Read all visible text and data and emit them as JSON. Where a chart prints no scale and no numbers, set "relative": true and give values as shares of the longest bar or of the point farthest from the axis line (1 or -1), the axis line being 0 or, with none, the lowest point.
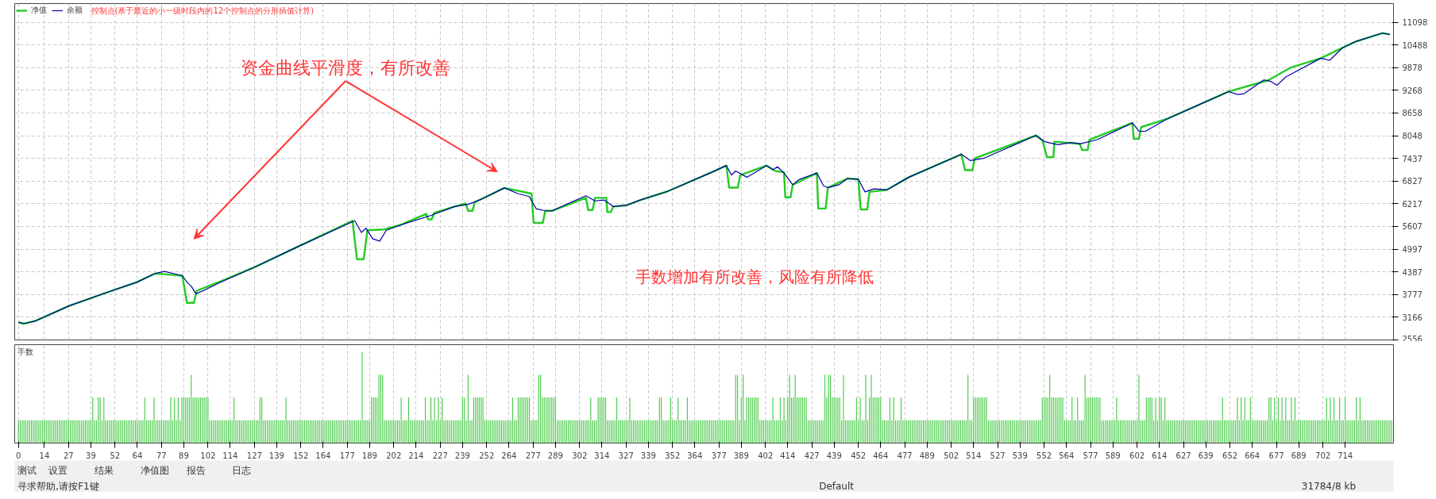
{
  "chart_data": [
    {
      "type": "line",
      "legend": "top left",
      "grid": true,
      "tick_labels": "y",
      "line_style": "solid",
      "xlim": [
        -2,
        740
      ],
      "ylim": [
        2556,
        11600
      ],
      "xticks": [
        0,
        14,
        27,
        39,
        52,
        64,
        77,
        89,
        102,
        114,
        127,
        139,
        152,
        164,
        177,
        189,
        202,
        214,
        227,
        239,
        252,
        264,
        277,
        289,
        302,
        314,
        327,
        339,
        352,
        364,
        377,
        389,
        402,
        414,
        427,
        439,
        452,
        464,
        477,
        489,
        502,
        514,
        527,
        539,
        552,
        564,
        577,
        589,
        602,
        614,
        627,
        639,
        652,
        664,
        677,
        689,
        702,
        714
      ],
      "yticks": [
        2556,
        3166,
        3777,
        4387,
        4997,
        5607,
        6217,
        6827,
        7437,
        8048,
        8658,
        9268,
        9878,
        10488,
        11098
      ],
      "annotations": [
        "控制点(基于最近的小一级时段内的12个控制点的分形插值计算)",
        "手数增加有所改善，风险有所降低",
        "资金曲线平滑度，有所改善"
      ],
      "series": [
        {
          "name": "净值",
          "color": "#22cc22",
          "x": [
            0,
            2.8,
            9,
            27.2,
            46.8,
            63.8,
            73.6,
            79.7,
            88.2,
            90.7,
            94.4,
            96,
            107.8,
            127.3,
            149.3,
            179.8,
            182.2,
            185.8,
            187.8,
            196.8,
            205.4,
            219.5,
            220.5,
            222.4,
            223.7,
            234.7,
            240.7,
            242,
            244.4,
            245.6,
            261.5,
            276.1,
            277.3,
            282.2,
            283.5,
            287.1,
            305.4,
            306.6,
            309,
            310.3,
            316.4,
            316.9,
            318.8,
            320.1,
            327.4,
            334.7,
            349.3,
            373.1,
            381,
            382.5,
            387.2,
            388.4,
            402.6,
            407.3,
            412,
            412.7,
            415.5,
            416.7,
            429.7,
            430.4,
            434.4,
            435.6,
            446.2,
            452,
            453.3,
            456.8,
            458,
            467.4,
            479.2,
            507.5,
            509.4,
            513.4,
            514.6,
            547.6,
            551.1,
            553.5,
            557,
            557.5,
            571.2,
            572.4,
            575.4,
            576.4,
            599.5,
            600.2,
            603,
            604.2,
            618.3,
            651.3,
            672.5,
            684.4,
            700.9,
            712.6,
            719.7,
            733.9,
            738
          ],
          "values": [
            3030,
            2994,
            3064,
            3471,
            3819,
            4110,
            4342,
            4319,
            4284,
            3552,
            3552,
            3877,
            4110,
            4517,
            5039,
            5760,
            4726,
            4726,
            5504,
            5527,
            5644,
            5946,
            5795,
            5795,
            5969,
            6143,
            6225,
            6027,
            6027,
            6260,
            6643,
            6492,
            5702,
            5702,
            6027,
            6027,
            6376,
            6050,
            6050,
            6376,
            6376,
            5992,
            5992,
            6143,
            6178,
            6318,
            6550,
            7065,
            7245,
            6650,
            6650,
            6987,
            7245,
            7099,
            7065,
            6391,
            6391,
            6728,
            7043,
            6088,
            6088,
            6650,
            6897,
            6874,
            6066,
            6066,
            6537,
            6594,
            6931,
            7548,
            7122,
            7122,
            7436,
            8054,
            7919,
            7470,
            7470,
            7885,
            7829,
            7661,
            7661,
            7941,
            8391,
            7964,
            7964,
            8278,
            8503,
            9233,
            9536,
            9873,
            10131,
            10412,
            10580,
            10805,
            10771
          ]
        },
        {
          "name": "余额",
          "color": "#0000aa",
          "x": [
            0,
            2.8,
            9,
            27.2,
            46.8,
            63.8,
            73.6,
            78.5,
            83.4,
            88.2,
            90.7,
            93.1,
            95.6,
            100.4,
            107.8,
            127.3,
            149.3,
            181,
            184.6,
            187,
            190.7,
            194.4,
            198,
            205.4,
            222.4,
            234.7,
            242,
            249.3,
            261.5,
            268.8,
            274.9,
            278.6,
            283.5,
            287.1,
            305.4,
            310.3,
            315.2,
            320.1,
            327.4,
            334.7,
            349.3,
            373.1,
            381,
            383.7,
            386,
            392,
            402.6,
            406,
            408.5,
            412,
            416.7,
            420.3,
            429.7,
            433.2,
            435.6,
            441.5,
            446.2,
            452,
            455.6,
            460.3,
            467.4,
            479.2,
            507.5,
            512.2,
            519.3,
            547.6,
            552.3,
            559.4,
            566.5,
            571.2,
            580.6,
            599.5,
            603,
            606.5,
            618.3,
            651.3,
            656.1,
            659.6,
            670.2,
            673.7,
            677.3,
            682,
            700.9,
            705.6,
            712.6,
            719.7,
            733.9,
            738
          ],
          "values": [
            3030,
            2994,
            3064,
            3471,
            3819,
            4110,
            4342,
            4400,
            4342,
            4284,
            4110,
            3994,
            3796,
            3901,
            4087,
            4517,
            5039,
            5760,
            5446,
            5562,
            5272,
            5214,
            5504,
            5644,
            5911,
            6143,
            6201,
            6341,
            6643,
            6492,
            6411,
            6085,
            6027,
            6027,
            6434,
            6294,
            6318,
            6143,
            6178,
            6318,
            6550,
            7065,
            7245,
            6987,
            7099,
            6931,
            7245,
            7133,
            7211,
            7043,
            6728,
            6874,
            7043,
            6706,
            6650,
            6728,
            6897,
            6874,
            6537,
            6616,
            6594,
            6931,
            7548,
            7380,
            7436,
            8054,
            7885,
            7806,
            7863,
            7829,
            7941,
            8391,
            8166,
            8166,
            8503,
            9233,
            9154,
            9177,
            9547,
            9514,
            9401,
            9626,
            10131,
            10075,
            10412,
            10580,
            10805,
            10771
          ]
        }
      ]
    },
    {
      "type": "bar",
      "title": "手数",
      "relative": true,
      "grid": true,
      "tick_labels": "x",
      "color": "#4ccc4c",
      "xlim": [
        -2,
        740
      ],
      "xticks": [
        0,
        14,
        27,
        39,
        52,
        64,
        77,
        89,
        102,
        114,
        127,
        139,
        152,
        164,
        177,
        189,
        202,
        214,
        227,
        239,
        252,
        264,
        277,
        289,
        302,
        314,
        327,
        339,
        352,
        364,
        377,
        389,
        402,
        414,
        427,
        439,
        452,
        464,
        477,
        489,
        502,
        514,
        527,
        539,
        552,
        564,
        577,
        589,
        602,
        614,
        627,
        639,
        652,
        664,
        677,
        689,
        702,
        714
      ],
      "x": [
        0,
        1,
        2,
        3,
        4,
        5,
        6,
        7,
        8,
        9,
        10,
        11,
        12,
        13,
        14,
        15,
        16,
        17,
        18,
        19,
        20,
        21,
        22,
        23,
        24,
        25,
        26,
        27,
        28,
        29,
        30,
        31,
        32,
        33,
        34,
        35,
        36,
        37,
        38,
        39,
        40,
        41,
        42,
        43,
        44,
        45,
        46,
        47,
        48,
        49,
        50,
        51,
        52,
        53,
        54,
        55,
        56,
        57,
        58,
        59,
        60,
        61,
        62,
        63,
        64,
        65,
        66,
        67,
        68,
        69,
        70,
        71,
        72,
        73,
        74,
        75,
        76,
        77,
        78,
        79,
        80,
        81,
        82,
        83,
        84,
        85,
        86,
        87,
        88,
        89,
        90,
        91,
        92,
        93,
        94,
        95,
        96,
        97,
        98,
        99,
        100,
        101,
        102,
        103,
        104,
        105,
        106,
        107,
        108,
        109,
        110,
        111,
        112,
        113,
        114,
        115,
        116,
        117,
        118,
        119,
        120,
        121,
        122,
        123,
        124,
        125,
        126,
        127,
        128,
        129,
        130,
        131,
        132,
        133,
        134,
        135,
        136,
        137,
        138,
        139,
        140,
        141,
        142,
        143,
        144,
        145,
        146,
        147,
        148,
        149,
        150,
        151,
        152,
        153,
        154,
        155,
        156,
        157,
        158,
        159,
        160,
        161,
        162,
        163,
        164,
        165,
        166,
        167,
        168,
        169,
        170,
        171,
        172,
        173,
        174,
        175,
        176,
        177,
        178,
        179,
        180,
        181,
        182,
        183,
        184,
        185,
        186,
        187,
        188,
        189,
        190,
        191,
        192,
        193,
        194,
        195,
        196,
        197,
        198,
        199,
        200,
        201,
        202,
        203,
        204,
        205,
        206,
        207,
        208,
        209,
        210,
        211,
        212,
        213,
        214,
        215,
        216,
        217,
        218,
        219,
        220,
        221,
        222,
        223,
        224,
        225,
        226,
        227,
        228,
        229,
        230,
        231,
        232,
        233,
        234,
        235,
        236,
        237,
        238,
        239,
        240,
        241,
        242,
        243,
        244,
        245,
        246,
        247,
        248,
        249,
        250,
        251,
        252,
        253,
        254,
        255,
        256,
        257,
        258,
        259,
        260,
        261,
        262,
        263,
        264,
        265,
        266,
        267,
        268,
        269,
        270,
        271,
        272,
        273,
        274,
        275,
        276,
        277,
        278,
        279,
        280,
        281,
        282,
        283,
        284,
        285,
        286,
        287,
        288,
        289,
        290,
        291,
        292,
        293,
        294,
        295,
        296,
        297,
        298,
        299,
        300,
        301,
        302,
        303,
        304,
        305,
        306,
        307,
        308,
        309,
        310,
        311,
        312,
        313,
        314,
        315,
        316,
        317,
        318,
        319,
        320,
        321,
        322,
        323,
        324,
        325,
        326,
        327,
        328,
        329,
        330,
        331,
        332,
        333,
        334,
        335,
        336,
        337,
        338,
        339,
        340,
        341,
        342,
        343,
        344,
        345,
        346,
        347,
        348,
        349,
        350,
        351,
        352,
        353,
        354,
        355,
        356,
        357,
        358,
        359,
        360,
        361,
        362,
        363,
        364,
        365,
        366,
        367,
        368,
        369,
        370,
        371,
        372,
        373,
        374,
        375,
        376,
        377,
        378,
        379,
        380,
        381,
        382,
        383,
        384,
        385,
        386,
        387,
        388,
        389,
        390,
        391,
        392,
        393,
        394,
        395,
        396,
        397,
        398,
        399,
        400,
        401,
        402,
        403,
        404,
        405,
        406,
        407,
        408,
        409,
        410,
        411,
        412,
        413,
        414,
        415,
        416,
        417,
        418,
        419,
        420,
        421,
        422,
        423,
        424,
        425,
        426,
        427,
        428,
        429,
        430,
        431,
        432,
        433,
        434,
        435,
        436,
        437,
        438,
        439,
        440,
        441,
        442,
        443,
        444,
        445,
        446,
        447,
        448,
        449,
        450,
        451,
        452,
        453,
        454,
        455,
        456,
        457,
        458,
        459,
        460,
        461,
        462,
        463,
        464,
        465,
        466,
        467,
        468,
        469,
        470,
        471,
        472,
        473,
        474,
        475,
        476,
        477,
        478,
        479,
        480,
        481,
        482,
        483,
        484,
        485,
        486,
        487,
        488,
        489,
        490,
        491,
        492,
        493,
        494,
        495,
        496,
        497,
        498,
        499,
        500,
        501,
        502,
        503,
        504,
        505,
        506,
        507,
        508,
        509,
        510,
        511,
        512,
        513,
        514,
        515,
        516,
        517,
        518,
        519,
        520,
        521,
        522,
        523,
        524,
        525,
        526,
        527,
        528,
        529,
        530,
        531,
        532,
        533,
        534,
        535,
        536,
        537,
        538,
        539,
        540,
        541,
        542,
        543,
        544,
        545,
        546,
        547,
        548,
        549,
        550,
        551,
        552,
        553,
        554,
        555,
        556,
        557,
        558,
        559,
        560,
        561,
        562,
        563,
        564,
        565,
        566,
        567,
        568,
        569,
        570,
        571,
        572,
        573,
        574,
        575,
        576,
        577,
        578,
        579,
        580,
        581,
        582,
        583,
        584,
        585,
        586,
        587,
        588,
        589,
        590,
        591,
        592,
        593,
        594,
        595,
        596,
        597,
        598,
        599,
        600,
        601,
        602,
        603,
        604,
        605,
        606,
        607,
        608,
        609,
        610,
        611,
        612,
        613,
        614,
        615,
        616,
        617,
        618,
        619,
        620,
        621,
        622,
        623,
        624,
        625,
        626,
        627,
        628,
        629,
        630,
        631,
        632,
        633,
        634,
        635,
        636,
        637,
        638,
        639,
        640,
        641,
        642,
        643,
        644,
        645,
        646,
        647,
        648,
        649,
        650,
        651,
        652,
        653,
        654,
        655,
        656,
        657,
        658,
        659,
        660,
        661,
        662,
        663,
        664,
        665,
        666,
        667,
        668,
        669,
        670,
        671,
        672,
        673,
        674,
        675,
        676,
        677,
        678,
        679,
        680,
        681,
        682,
        683,
        684,
        685,
        686,
        687,
        688,
        689,
        690,
        691,
        692,
        693,
        694,
        695,
        696,
        697,
        698,
        699,
        700,
        701,
        702,
        703,
        704,
        705,
        706,
        707,
        708,
        709,
        710,
        711,
        712,
        713,
        714,
        715,
        716,
        717,
        718,
        719,
        720,
        721,
        722,
        723,
        724,
        725,
        726,
        727,
        728,
        729,
        730,
        731,
        732,
        733,
        734,
        735,
        736,
        737,
        738,
        739
      ],
      "values": [
        0.25,
        0.25,
        0.25,
        0.25,
        0.25,
        0.25,
        0.25,
        0.25,
        0.25,
        0.25,
        0.25,
        0.25,
        0.25,
        0.25,
        0.25,
        0.25,
        0.25,
        0.25,
        0.25,
        0.25,
        0.25,
        0.25,
        0.25,
        0.25,
        0.25,
        0.25,
        0.25,
        0.25,
        0.25,
        0.25,
        0.25,
        0.25,
        0.25,
        0.25,
        0.25,
        0.25,
        0.25,
        0.25,
        0.25,
        0.25,
        0.5,
        0.25,
        0.25,
        0.5,
        0.5,
        0.25,
        0.5,
        0.25,
        0.25,
        0.25,
        0.25,
        0.25,
        0.25,
        0.25,
        0.25,
        0.25,
        0.25,
        0.25,
        0.25,
        0.25,
        0.25,
        0.25,
        0.25,
        0.25,
        0.25,
        0.25,
        0.25,
        0.25,
        0.5,
        0.25,
        0.25,
        0.25,
        0.25,
        0.5,
        0.25,
        0.25,
        0.25,
        0.25,
        0.25,
        0.25,
        0.25,
        0.25,
        0.5,
        0.25,
        0.5,
        0.25,
        0.5,
        0.25,
        0.5,
        0.5,
        0.5,
        0.5,
        0.5,
        0.75,
        0.5,
        0.5,
        0.5,
        0.5,
        0.5,
        0.5,
        0.5,
        0.5,
        0.5,
        0.25,
        0.25,
        0.25,
        0.25,
        0.25,
        0.25,
        0.25,
        0.25,
        0.25,
        0.25,
        0.25,
        0.25,
        0.25,
        0.5,
        0.25,
        0.25,
        0.25,
        0.25,
        0.25,
        0.25,
        0.25,
        0.25,
        0.25,
        0.25,
        0.25,
        0.25,
        0.25,
        0.5,
        0.5,
        0.25,
        0.25,
        0.25,
        0.25,
        0.25,
        0.25,
        0.25,
        0.25,
        0.25,
        0.25,
        0.25,
        0.25,
        0.5,
        0.25,
        0.25,
        0.25,
        0.25,
        0.25,
        0.25,
        0.25,
        0.25,
        0.25,
        0.25,
        0.25,
        0.25,
        0.25,
        0.25,
        0.25,
        0.25,
        0.25,
        0.25,
        0.25,
        0.25,
        0.25,
        0.25,
        0.25,
        0.25,
        0.25,
        0.25,
        0.25,
        0.25,
        0.25,
        0.25,
        0.25,
        0.25,
        0.25,
        0.25,
        0.25,
        0.25,
        0.25,
        0.25,
        0.25,
        0.25,
        1,
        0.25,
        0.25,
        0.25,
        0.25,
        0.5,
        0.5,
        0.5,
        0.5,
        0.75,
        0.75,
        0.75,
        0.25,
        0.25,
        0.25,
        0.25,
        0.25,
        0.25,
        0.25,
        0.25,
        0.25,
        0.5,
        0.25,
        0.25,
        0.25,
        0.5,
        0.25,
        0.25,
        0.25,
        0.25,
        0.25,
        0.25,
        0.25,
        0.25,
        0.5,
        0.25,
        0.25,
        0.5,
        0.25,
        0.5,
        0.25,
        0.5,
        0.25,
        0.5,
        0.25,
        0.25,
        0.25,
        0.25,
        0.25,
        0.25,
        0.25,
        0.25,
        0.25,
        0.25,
        0.5,
        0.5,
        0.25,
        0.75,
        0.25,
        0.25,
        0.5,
        0.5,
        0.5,
        0.5,
        0.5,
        0.5,
        0.25,
        0.25,
        0.25,
        0.25,
        0.25,
        0.25,
        0.25,
        0.25,
        0.25,
        0.25,
        0.25,
        0.25,
        0.25,
        0.25,
        0.25,
        0.5,
        0.25,
        0.25,
        0.5,
        0.5,
        0.5,
        0.5,
        0.5,
        0.5,
        0.5,
        0.25,
        0.25,
        0.25,
        0.25,
        0.75,
        0.75,
        0.5,
        0.5,
        0.5,
        0.5,
        0.5,
        0.5,
        0.5,
        0.5,
        0.25,
        0.25,
        0.25,
        0.25,
        0.25,
        0.25,
        0.25,
        0.25,
        0.25,
        0.25,
        0.25,
        0.25,
        0.25,
        0.25,
        0.25,
        0.25,
        0.25,
        0.25,
        0.5,
        0.25,
        0.25,
        0.25,
        0.5,
        0.5,
        0.5,
        0.5,
        0.5,
        0.25,
        0.25,
        0.25,
        0.25,
        0.25,
        0.5,
        0.25,
        0.25,
        0.25,
        0.25,
        0.25,
        0.25,
        0.5,
        0.25,
        0.25,
        0.25,
        0.25,
        0.25,
        0.25,
        0.25,
        0.25,
        0.25,
        0.25,
        0.25,
        0.25,
        0.25,
        0.25,
        0.25,
        0.5,
        0.5,
        0.25,
        0.25,
        0.25,
        0.25,
        0.5,
        0.25,
        0.25,
        0.25,
        0.5,
        0.25,
        0.25,
        0.25,
        0.25,
        0.5,
        0.25,
        0.25,
        0.25,
        0.25,
        0.25,
        0.25,
        0.25,
        0.25,
        0.25,
        0.25,
        0.25,
        0.25,
        0.25,
        0.25,
        0.25,
        0.25,
        0.25,
        0.25,
        0.25,
        0.25,
        0.25,
        0.25,
        0.25,
        0.25,
        0.25,
        0.75,
        0.75,
        0.25,
        0.5,
        0.75,
        0.25,
        0.5,
        0.5,
        0.5,
        0.5,
        0.5,
        0.5,
        0.5,
        0.25,
        0.25,
        0.25,
        0.25,
        0.25,
        0.25,
        0.25,
        0.5,
        0.25,
        0.25,
        0.25,
        0.5,
        0.25,
        0.5,
        0.25,
        0.5,
        0.75,
        0.5,
        0.5,
        0.75,
        0.5,
        0.5,
        0.5,
        0.5,
        0.5,
        0.5,
        0.25,
        0.25,
        0.25,
        0.25,
        0.25,
        0.25,
        0.25,
        0.25,
        0.25,
        0.75,
        0.5,
        0.75,
        0.75,
        0.5,
        0.5,
        0.5,
        0.5,
        0.5,
        0.25,
        0.75,
        0.25,
        0.25,
        0.25,
        0.25,
        0.25,
        0.25,
        0.5,
        0.25,
        0.5,
        0.25,
        0.25,
        0.75,
        0.25,
        0.5,
        0.75,
        0.5,
        0.5,
        0.5,
        0.5,
        0.5,
        0.25,
        0.25,
        0.25,
        0.25,
        0.5,
        0.25,
        0.5,
        0.25,
        0.25,
        0.25,
        0.5,
        0.25,
        0.25,
        0.25,
        0.25,
        0.25,
        0.25,
        0.25,
        0.25,
        0.25,
        0.25,
        0.25,
        0.25,
        0.25,
        0.25,
        0.25,
        0.25,
        0.25,
        0.25,
        0.25,
        0.25,
        0.25,
        0.25,
        0.25,
        0.25,
        0.25,
        0.25,
        0.25,
        0.25,
        0.25,
        0.25,
        0.25,
        0.25,
        0.25,
        0.25,
        0.25,
        0.75,
        0.25,
        0.25,
        0.5,
        0.5,
        0.5,
        0.5,
        0.5,
        0.5,
        0.5,
        0.5,
        0.25,
        0.25,
        0.25,
        0.25,
        0.25,
        0.25,
        0.25,
        0.25,
        0.25,
        0.25,
        0.25,
        0.25,
        0.25,
        0.25,
        0.25,
        0.25,
        0.25,
        0.25,
        0.25,
        0.25,
        0.25,
        0.25,
        0.25,
        0.25,
        0.25,
        0.25,
        0.25,
        0.25,
        0.25,
        0.5,
        0.5,
        0.5,
        0.5,
        0.75,
        0.5,
        0.5,
        0.5,
        0.5,
        0.5,
        0.5,
        0.5,
        0.25,
        0.25,
        0.25,
        0.25,
        0.5,
        0.25,
        0.25,
        0.5,
        0.25,
        0.25,
        0.25,
        0.75,
        0.5,
        0.5,
        0.5,
        0.5,
        0.5,
        0.5,
        0.5,
        0.5,
        0.25,
        0.25,
        0.25,
        0.25,
        0.25,
        0.25,
        0.25,
        0.25,
        0.5,
        0.25,
        0.25,
        0.25,
        0.25,
        0.25,
        0.25,
        0.25,
        0.25,
        0.25,
        0.25,
        0.25,
        0.75,
        0.25,
        0.25,
        0.25,
        0.5,
        0.5,
        0.5,
        0.5,
        0.25,
        0.5,
        0.25,
        0.5,
        0.5,
        0.25,
        0.5,
        0.25,
        0.25,
        0.25,
        0.25,
        0.25,
        0.25,
        0.25,
        0.25,
        0.25,
        0.25,
        0.25,
        0.25,
        0.25,
        0.25,
        0.25,
        0.25,
        0.25,
        0.25,
        0.25,
        0.25,
        0.25,
        0.25,
        0.25,
        0.25,
        0.25,
        0.25,
        0.25,
        0.25,
        0.25,
        0.25,
        0.5,
        0.25,
        0.25,
        0.25,
        0.25,
        0.25,
        0.25,
        0.25,
        0.5,
        0.25,
        0.5,
        0.25,
        0.5,
        0.25,
        0.25,
        0.5,
        0.25,
        0.25,
        0.25,
        0.25,
        0.25,
        0.25,
        0.25,
        0.25,
        0.25,
        0.5,
        0.5,
        0.25,
        0.5,
        0.25,
        0.5,
        0.25,
        0.5,
        0.25,
        0.5,
        0.25,
        0.25,
        0.5,
        0.25,
        0.5,
        0.25,
        0.25,
        0.25,
        0.25,
        0.25,
        0.25,
        0.25,
        0.25,
        0.25,
        0.25,
        0.25,
        0.25,
        0.25,
        0.25,
        0.25,
        0.25,
        0.5,
        0.25,
        0.5,
        0.25,
        0.5,
        0.25,
        0.25,
        0.5,
        0.25,
        0.25,
        0.5,
        0.25,
        0.25,
        0.25,
        0.25,
        0.25,
        0.5,
        0.25,
        0.5,
        0.25,
        0.25,
        0.25,
        0.25,
        0.25,
        0.25,
        0.25,
        0.25,
        0.25,
        0.25,
        0.25,
        0.25,
        0.25,
        0.25,
        0.25,
        0.25,
        0.25
      ]
    },
    {
      "type": "other",
      "annotations": [
        "测试",
        "设置",
        "结果",
        "净值图",
        "报告",
        "日志",
        "寻求帮助,请按F1键",
        "Default",
        "31784/8 kb"
      ]
    }
  ]
}
